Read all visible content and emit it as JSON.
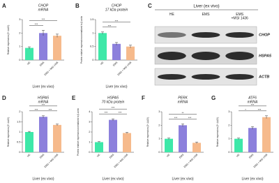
{
  "chart_data": [
    {
      "type": "bar",
      "panel": "A",
      "title": "CHOP",
      "subtitle": "mRNA",
      "ylabel": "Relative expression (2^-ΔΔCt)",
      "xlabel": "Liver (ex vivo)",
      "categories": [
        "HE",
        "EMS",
        "EMS + MSI 1436"
      ],
      "colors": [
        "#3ee8a8",
        "#8c80dc",
        "#f6ba8c"
      ],
      "values": [
        0.9,
        2.0,
        1.8
      ],
      "errors": [
        0.08,
        0.2,
        0.12
      ],
      "ylim": [
        0,
        3
      ],
      "yticks": [
        0,
        1,
        2,
        3
      ],
      "brackets": [
        {
          "label": "***",
          "between": [
            "HE",
            "EMS + MSI 1436"
          ]
        },
        {
          "label": "***",
          "between": [
            "HE",
            "EMS"
          ]
        }
      ]
    },
    {
      "type": "bar",
      "panel": "B",
      "title": "CHOP",
      "subtitle": "17 kDa protein",
      "ylabel": "Protein relative expression normalized to β-actin",
      "xlabel": "Liver (ex vivo)",
      "categories": [
        "HE",
        "EMS",
        "EMS + MSI 1436"
      ],
      "colors": [
        "#3ee8a8",
        "#8c80dc",
        "#f6ba8c"
      ],
      "values": [
        1.0,
        0.6,
        0.5
      ],
      "errors": [
        0.04,
        0.05,
        0.05
      ],
      "ylim": [
        0,
        1.5
      ],
      "yticks": [
        0,
        0.5,
        1,
        1.5
      ],
      "brackets": [
        {
          "label": "***",
          "between": [
            "HE",
            "EMS + MSI 1436"
          ]
        },
        {
          "label": "***",
          "between": [
            "HE",
            "EMS"
          ]
        }
      ]
    },
    {
      "type": "bar",
      "panel": "D",
      "title": "HSPA5",
      "subtitle": "mRNA",
      "ylabel": "Relative expression (2^-ΔΔCt)",
      "xlabel": "Liver (ex vivo)",
      "categories": [
        "HE",
        "EMS",
        "EMS + MSI 1436"
      ],
      "colors": [
        "#3ee8a8",
        "#8c80dc",
        "#f6ba8c"
      ],
      "values": [
        1.0,
        1.75,
        1.35
      ],
      "errors": [
        0.03,
        0.05,
        0.04
      ],
      "ylim": [
        0,
        2
      ],
      "yticks": [
        0,
        0.5,
        1,
        1.5,
        2
      ],
      "brackets": [
        {
          "label": "***",
          "between": [
            "HE",
            "EMS + MSI 1436"
          ]
        },
        {
          "label": "***",
          "between": [
            "HE",
            "EMS"
          ]
        },
        {
          "label": "***",
          "between": [
            "EMS",
            "EMS + MSI 1436"
          ]
        }
      ]
    },
    {
      "type": "bar",
      "panel": "E",
      "title": "HSPA5",
      "subtitle": "70 kDa protein",
      "ylabel": "Protein relative expression normalized to β-actin",
      "xlabel": "Liver (ex vivo)",
      "categories": [
        "HE",
        "EMS",
        "EMS + MSI 1436"
      ],
      "colors": [
        "#3ee8a8",
        "#8c80dc",
        "#f6ba8c"
      ],
      "values": [
        1.0,
        3.2,
        1.9
      ],
      "errors": [
        0.05,
        0.1,
        0.06
      ],
      "ylim": [
        0,
        4
      ],
      "yticks": [
        0,
        1,
        2,
        3,
        4
      ],
      "brackets": [
        {
          "label": "***",
          "between": [
            "HE",
            "EMS + MSI 1436"
          ]
        },
        {
          "label": "***",
          "between": [
            "HE",
            "EMS"
          ]
        },
        {
          "label": "***",
          "between": [
            "EMS",
            "EMS + MSI 1436"
          ]
        }
      ]
    },
    {
      "type": "bar",
      "panel": "F",
      "title": "PERK",
      "subtitle": "mRNA",
      "ylabel": "Relative expression (2^-ΔΔCt)",
      "xlabel": "Liver (ex vivo)",
      "categories": [
        "HE",
        "EMS",
        "EMS + MSI 1436"
      ],
      "colors": [
        "#3ee8a8",
        "#8c80dc",
        "#f6ba8c"
      ],
      "values": [
        1.0,
        2.0,
        0.7
      ],
      "errors": [
        0.05,
        0.1,
        0.05
      ],
      "ylim": [
        0,
        3
      ],
      "yticks": [
        0,
        1,
        2,
        3
      ],
      "brackets": [
        {
          "label": "**",
          "between": [
            "HE",
            "EMS + MSI 1436"
          ]
        },
        {
          "label": "***",
          "between": [
            "HE",
            "EMS"
          ]
        },
        {
          "label": "***",
          "between": [
            "EMS",
            "EMS + MSI 1436"
          ]
        }
      ]
    },
    {
      "type": "bar",
      "panel": "G",
      "title": "ATF6",
      "subtitle": "mRNA",
      "ylabel": "Relative expression (2^-ΔΔCt)",
      "xlabel": "Liver (ex vivo)",
      "categories": [
        "HE",
        "EMS",
        "EMS + MSI 1436"
      ],
      "colors": [
        "#3ee8a8",
        "#8c80dc",
        "#f6ba8c"
      ],
      "values": [
        1.0,
        1.8,
        2.6
      ],
      "errors": [
        0.05,
        0.1,
        0.1
      ],
      "ylim": [
        0,
        3
      ],
      "yticks": [
        0,
        1,
        2,
        3
      ],
      "brackets": [
        {
          "label": "***",
          "between": [
            "HE",
            "EMS + MSI 1436"
          ]
        },
        {
          "label": "*",
          "between": [
            "HE",
            "EMS"
          ]
        },
        {
          "label": "***",
          "between": [
            "EMS",
            "EMS + MSI 1436"
          ]
        }
      ]
    }
  ],
  "blot": {
    "panel": "C",
    "title": "Liver (ex vivo)",
    "lanes": [
      "HE",
      "EMS",
      "EMS\n+MSI 1436"
    ],
    "rows": [
      "CHOP",
      "HSPA5",
      "ACTB"
    ]
  }
}
